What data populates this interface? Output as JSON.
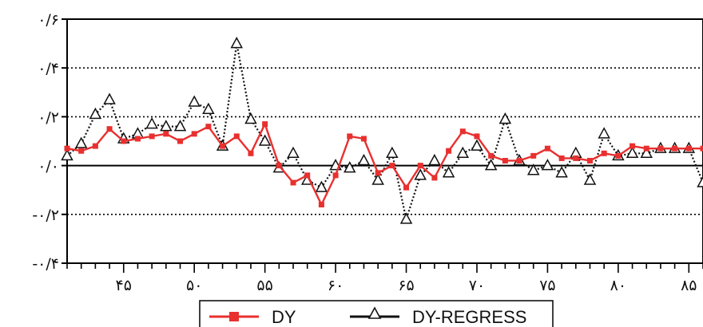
{
  "chart_data": {
    "type": "line",
    "x": [
      41,
      42,
      43,
      44,
      45,
      46,
      47,
      48,
      49,
      50,
      51,
      52,
      53,
      54,
      55,
      56,
      57,
      58,
      59,
      60,
      61,
      62,
      63,
      64,
      65,
      66,
      67,
      68,
      69,
      70,
      71,
      72,
      73,
      74,
      75,
      76,
      77,
      78,
      79,
      80,
      81,
      82,
      83,
      84,
      85,
      86
    ],
    "xlim": [
      41,
      86
    ],
    "ylim": [
      -0.4,
      0.6
    ],
    "x_ticks": [
      45,
      50,
      55,
      60,
      65,
      70,
      75,
      80,
      85
    ],
    "x_tick_labels": [
      "۴۵",
      "۵۰",
      "۵۵",
      "۶۰",
      "۶۵",
      "۷۰",
      "۷۵",
      "۸۰",
      "۸۵"
    ],
    "y_ticks": [
      -0.4,
      -0.2,
      0.0,
      0.2,
      0.4,
      0.6
    ],
    "y_tick_labels": [
      "-۰/۴",
      "-۰/۲",
      "۰/۰",
      "۰/۲",
      "۰/۴",
      "۰/۶"
    ],
    "grid": "horizontal dotted lines at ±0.2, 0.4; solid line at 0",
    "legend_position": "bottom-center",
    "series": [
      {
        "name": "DY",
        "color": "#e8302f",
        "marker": "square",
        "line": "solid",
        "values": [
          0.07,
          0.06,
          0.08,
          0.15,
          0.1,
          0.11,
          0.12,
          0.13,
          0.1,
          0.13,
          0.16,
          0.08,
          0.12,
          0.05,
          0.17,
          0.0,
          -0.07,
          -0.04,
          -0.16,
          -0.04,
          0.12,
          0.11,
          -0.03,
          0.0,
          -0.09,
          0.0,
          -0.05,
          0.06,
          0.14,
          0.12,
          0.04,
          0.02,
          0.02,
          0.04,
          0.07,
          0.03,
          0.03,
          0.02,
          0.05,
          0.04,
          0.08,
          0.07,
          0.07,
          0.07,
          0.07,
          0.07
        ]
      },
      {
        "name": "DY-REGRESS",
        "color": "#111111",
        "marker": "triangle-open",
        "line": "dotted",
        "values": [
          0.04,
          0.09,
          0.21,
          0.27,
          0.11,
          0.13,
          0.17,
          0.16,
          0.16,
          0.26,
          0.23,
          0.08,
          0.5,
          0.19,
          0.1,
          -0.01,
          0.05,
          -0.06,
          -0.09,
          0.0,
          -0.01,
          0.02,
          -0.06,
          0.05,
          -0.22,
          -0.04,
          0.02,
          -0.03,
          0.05,
          0.08,
          0.0,
          0.19,
          0.02,
          -0.02,
          0.0,
          -0.03,
          0.05,
          -0.06,
          0.13,
          0.04,
          0.05,
          0.05,
          0.07,
          0.07,
          0.07,
          -0.07
        ]
      }
    ]
  }
}
